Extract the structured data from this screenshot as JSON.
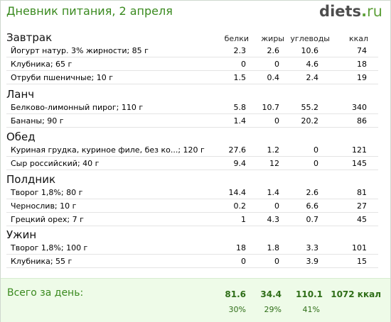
{
  "header": {
    "title": "Дневник питания, 2 апреля",
    "logo_main": "diets",
    "logo_dot": ".",
    "logo_tld": "ru"
  },
  "columns": {
    "protein": "белки",
    "fat": "жиры",
    "carbs": "углеводы",
    "kcal": "ккал"
  },
  "meals": [
    {
      "name": "Завтрак",
      "items": [
        {
          "name": "Йогурт натур. 3% жирности; 85 г",
          "protein": "2.3",
          "fat": "2.6",
          "carbs": "10.6",
          "kcal": "74"
        },
        {
          "name": "Клубника; 65 г",
          "protein": "0",
          "fat": "0",
          "carbs": "4.6",
          "kcal": "18"
        },
        {
          "name": "Отруби пшеничные; 10 г",
          "protein": "1.5",
          "fat": "0.4",
          "carbs": "2.4",
          "kcal": "19"
        }
      ]
    },
    {
      "name": "Ланч",
      "items": [
        {
          "name": "Белково-лимонный пирог; 110 г",
          "protein": "5.8",
          "fat": "10.7",
          "carbs": "55.2",
          "kcal": "340"
        },
        {
          "name": "Бананы; 90 г",
          "protein": "1.4",
          "fat": "0",
          "carbs": "20.2",
          "kcal": "86"
        }
      ]
    },
    {
      "name": "Обед",
      "items": [
        {
          "name": "Куриная грудка, куриное филе, без ко...; 120 г",
          "protein": "27.6",
          "fat": "1.2",
          "carbs": "0",
          "kcal": "121"
        },
        {
          "name": "Сыр российский; 40 г",
          "protein": "9.4",
          "fat": "12",
          "carbs": "0",
          "kcal": "145"
        }
      ]
    },
    {
      "name": "Полдник",
      "items": [
        {
          "name": "Творог 1,8%; 80 г",
          "protein": "14.4",
          "fat": "1.4",
          "carbs": "2.6",
          "kcal": "81"
        },
        {
          "name": "Чернослив; 10 г",
          "protein": "0.2",
          "fat": "0",
          "carbs": "6.6",
          "kcal": "27"
        },
        {
          "name": "Грецкий орех; 7 г",
          "protein": "1",
          "fat": "4.3",
          "carbs": "0.7",
          "kcal": "45"
        }
      ]
    },
    {
      "name": "Ужин",
      "items": [
        {
          "name": "Творог 1,8%; 100 г",
          "protein": "18",
          "fat": "1.8",
          "carbs": "3.3",
          "kcal": "101"
        },
        {
          "name": "Клубника; 55 г",
          "protein": "0",
          "fat": "0",
          "carbs": "3.9",
          "kcal": "15"
        }
      ]
    }
  ],
  "total": {
    "label": "Всего за день:",
    "protein": "81.6",
    "fat": "34.4",
    "carbs": "110.1",
    "kcal": "1072 ккал",
    "protein_pct": "30%",
    "fat_pct": "29%",
    "carbs_pct": "41%"
  }
}
